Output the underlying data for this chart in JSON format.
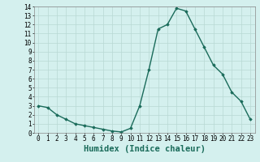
{
  "x": [
    0,
    1,
    2,
    3,
    4,
    5,
    6,
    7,
    8,
    9,
    10,
    11,
    12,
    13,
    14,
    15,
    16,
    17,
    18,
    19,
    20,
    21,
    22,
    23
  ],
  "y": [
    3.0,
    2.8,
    2.0,
    1.5,
    1.0,
    0.8,
    0.6,
    0.4,
    0.2,
    0.1,
    0.5,
    3.0,
    7.0,
    11.5,
    12.0,
    13.8,
    13.5,
    11.5,
    9.5,
    7.5,
    6.5,
    4.5,
    3.5,
    1.5
  ],
  "xlabel": "Humidex (Indice chaleur)",
  "ylim": [
    0,
    14
  ],
  "xlim": [
    -0.5,
    23.5
  ],
  "yticks": [
    0,
    1,
    2,
    3,
    4,
    5,
    6,
    7,
    8,
    9,
    10,
    11,
    12,
    13,
    14
  ],
  "xticks": [
    0,
    1,
    2,
    3,
    4,
    5,
    6,
    7,
    8,
    9,
    10,
    11,
    12,
    13,
    14,
    15,
    16,
    17,
    18,
    19,
    20,
    21,
    22,
    23
  ],
  "line_color": "#1a6b5a",
  "marker": "D",
  "marker_size": 1.8,
  "bg_color": "#d4f0ee",
  "grid_color": "#b8d8d4",
  "tick_label_fontsize": 5.5,
  "xlabel_fontsize": 7.5,
  "linewidth": 1.0
}
